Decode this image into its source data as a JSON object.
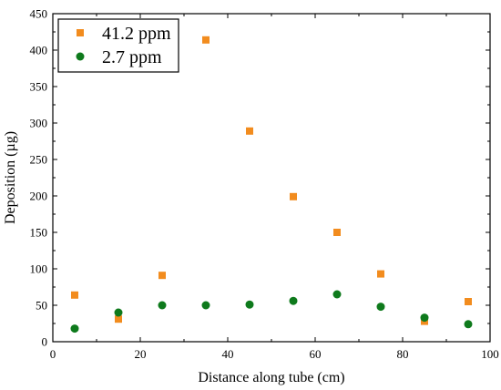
{
  "chart_data": {
    "type": "scatter",
    "title": "",
    "xlabel": "Distance along tube (cm)",
    "ylabel": "Deposition (µg)",
    "xlim": [
      0,
      100
    ],
    "ylim": [
      0,
      450
    ],
    "x_ticks": [
      0,
      20,
      40,
      60,
      80,
      100
    ],
    "y_ticks": [
      0,
      50,
      100,
      150,
      200,
      250,
      300,
      350,
      400,
      450
    ],
    "grid": false,
    "legend_position": "top-left",
    "series": [
      {
        "name": "41.2 ppm",
        "marker": "square",
        "color": "#F28C1E",
        "points": [
          {
            "x": 5,
            "y": 64
          },
          {
            "x": 15,
            "y": 31
          },
          {
            "x": 25,
            "y": 91
          },
          {
            "x": 35,
            "y": 414
          },
          {
            "x": 45,
            "y": 289
          },
          {
            "x": 55,
            "y": 199
          },
          {
            "x": 65,
            "y": 150
          },
          {
            "x": 75,
            "y": 93
          },
          {
            "x": 85,
            "y": 28
          },
          {
            "x": 95,
            "y": 55
          }
        ]
      },
      {
        "name": "2.7 ppm",
        "marker": "circle",
        "color": "#0E7A1C",
        "points": [
          {
            "x": 5,
            "y": 18
          },
          {
            "x": 15,
            "y": 40
          },
          {
            "x": 25,
            "y": 50
          },
          {
            "x": 35,
            "y": 50
          },
          {
            "x": 45,
            "y": 51
          },
          {
            "x": 55,
            "y": 56
          },
          {
            "x": 65,
            "y": 65
          },
          {
            "x": 75,
            "y": 48
          },
          {
            "x": 85,
            "y": 33
          },
          {
            "x": 95,
            "y": 24
          }
        ]
      }
    ]
  }
}
